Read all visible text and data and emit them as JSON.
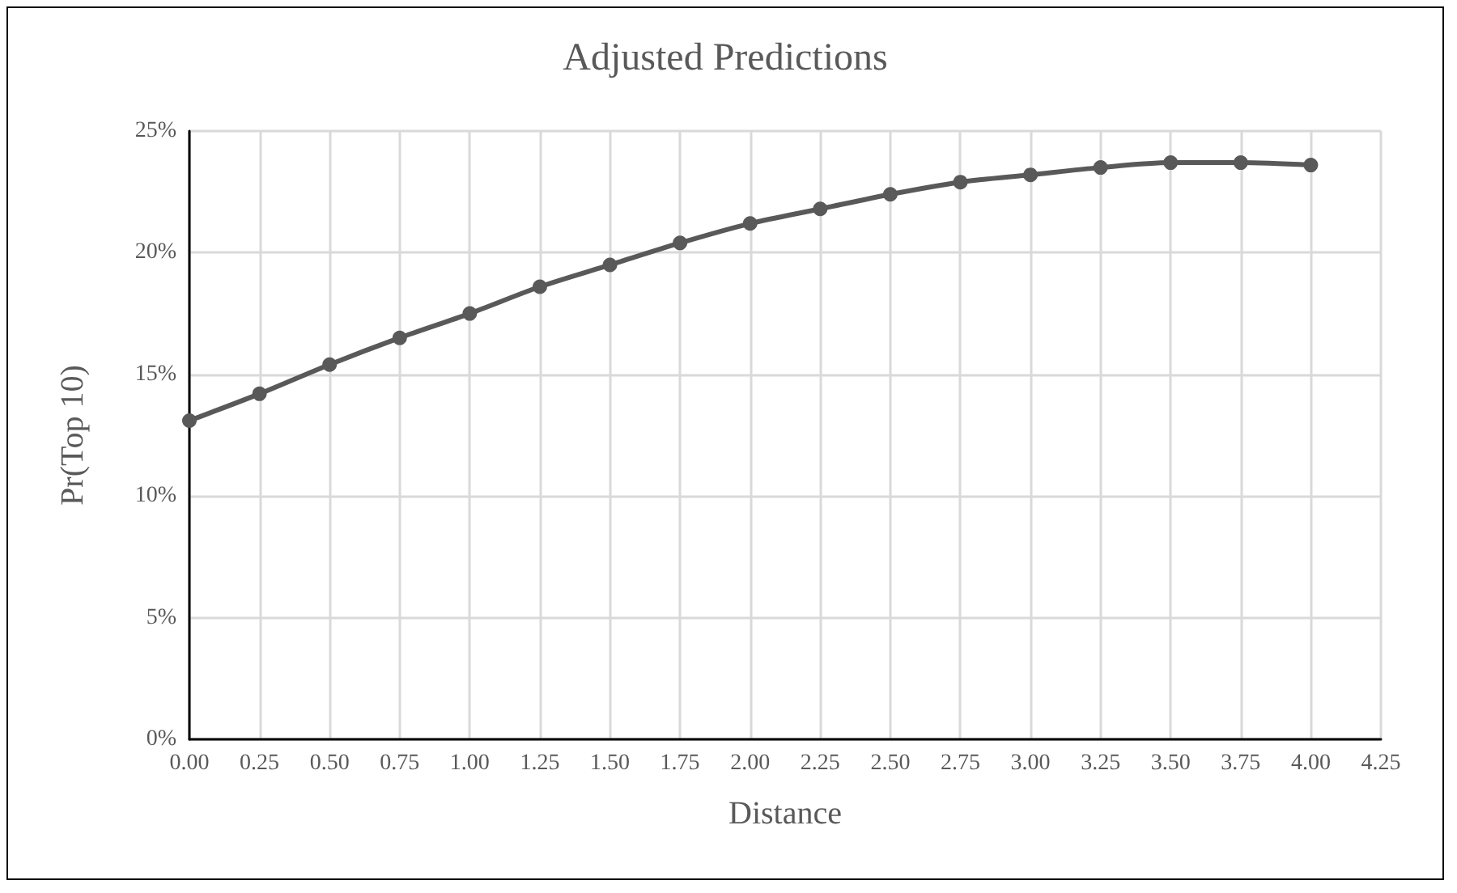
{
  "chart_data": {
    "type": "line",
    "title": "Adjusted Predictions",
    "xlabel": "Distance",
    "ylabel": "Pr(Top 10)",
    "x": [
      0,
      0.25,
      0.5,
      0.75,
      1,
      1.25,
      1.5,
      1.75,
      2,
      2.25,
      2.5,
      2.75,
      3,
      3.25,
      3.5,
      3.75,
      4
    ],
    "series": [
      {
        "color": "#595959",
        "values": [
          13.1,
          14.2,
          15.4,
          16.5,
          17.5,
          18.6,
          19.5,
          20.4,
          21.2,
          21.8,
          22.4,
          22.9,
          23.2,
          23.5,
          23.7,
          23.7,
          23.6
        ]
      }
    ],
    "xlim": [
      0,
      4.25
    ],
    "xticks": [
      {
        "value": 0,
        "label": "0.00"
      },
      {
        "value": 0.25,
        "label": "0.25"
      },
      {
        "value": 0.5,
        "label": "0.50"
      },
      {
        "value": 0.75,
        "label": "0.75"
      },
      {
        "value": 1,
        "label": "1.00"
      },
      {
        "value": 1.25,
        "label": "1.25"
      },
      {
        "value": 1.5,
        "label": "1.50"
      },
      {
        "value": 1.75,
        "label": "1.75"
      },
      {
        "value": 2,
        "label": "2.00"
      },
      {
        "value": 2.25,
        "label": "2.25"
      },
      {
        "value": 2.5,
        "label": "2.50"
      },
      {
        "value": 2.75,
        "label": "2.75"
      },
      {
        "value": 3,
        "label": "3.00"
      },
      {
        "value": 3.25,
        "label": "3.25"
      },
      {
        "value": 3.5,
        "label": "3.50"
      },
      {
        "value": 3.75,
        "label": "3.75"
      },
      {
        "value": 4,
        "label": "4.00"
      },
      {
        "value": 4.25,
        "label": "4.25"
      }
    ],
    "ylim": [
      0,
      25
    ],
    "yticks": [
      {
        "value": 0,
        "label": "0%"
      },
      {
        "value": 5,
        "label": "5%"
      },
      {
        "value": 10,
        "label": "10%"
      },
      {
        "value": 15,
        "label": "15%"
      },
      {
        "value": 20,
        "label": "20%"
      },
      {
        "value": 25,
        "label": "25%"
      }
    ],
    "grid": true,
    "marker": "circle",
    "line_style": "solid"
  }
}
